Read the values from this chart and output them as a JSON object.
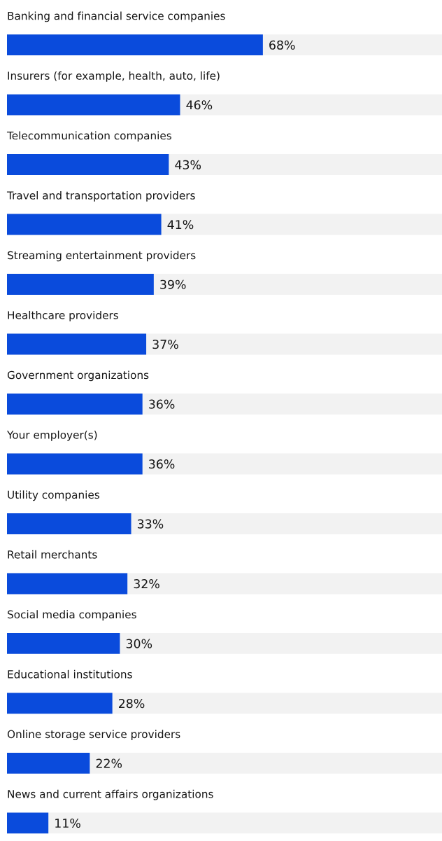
{
  "chart_data": {
    "type": "bar",
    "orientation": "horizontal",
    "categories": [
      "Banking and financial service companies",
      "Insurers (for example, health, auto, life)",
      "Telecommunication companies",
      "Travel and transportation providers",
      "Streaming entertainment providers",
      "Healthcare providers",
      "Government organizations",
      "Your employer(s)",
      "Utility companies",
      "Retail merchants",
      "Social media companies",
      "Educational institutions",
      "Online storage service providers",
      "News and current affairs organizations"
    ],
    "values": [
      68,
      46,
      43,
      41,
      39,
      37,
      36,
      36,
      33,
      32,
      30,
      28,
      22,
      11
    ],
    "value_labels": [
      "68%",
      "46%",
      "43%",
      "41%",
      "39%",
      "37%",
      "36%",
      "36%",
      "33%",
      "32%",
      "30%",
      "28%",
      "22%",
      "11%"
    ],
    "color": "#0a4bdc",
    "xlim": [
      0,
      115.6
    ]
  }
}
